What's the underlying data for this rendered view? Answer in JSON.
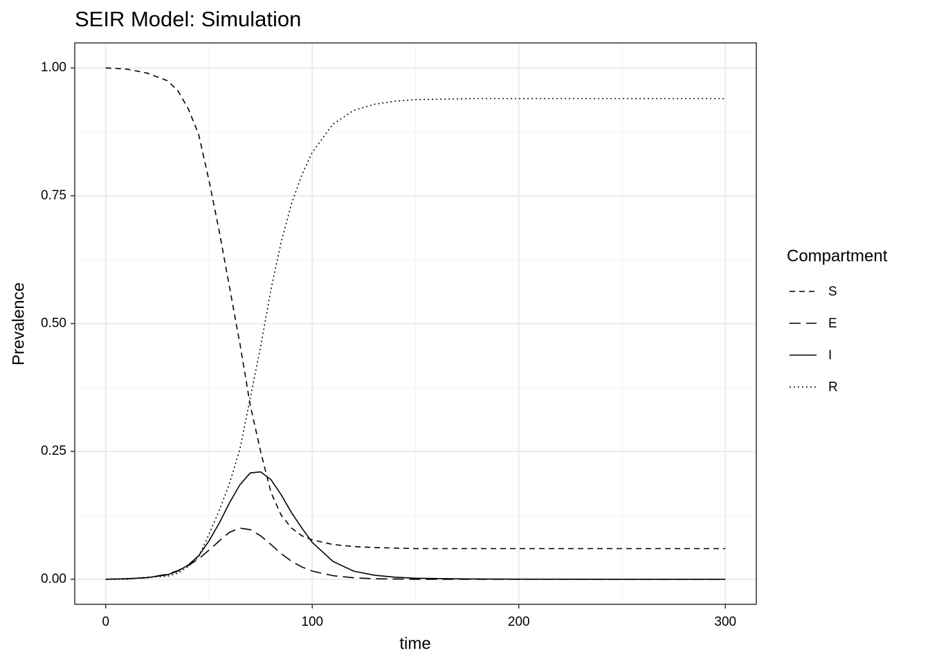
{
  "chart_data": {
    "type": "line",
    "title": "SEIR Model: Simulation",
    "x_label": "time",
    "y_label": "Prevalence",
    "legend_title": "Compartment",
    "legend": "right",
    "grid": true,
    "x": [
      0,
      10,
      20,
      30,
      35,
      40,
      45,
      50,
      55,
      60,
      65,
      70,
      75,
      80,
      85,
      90,
      95,
      100,
      110,
      120,
      130,
      140,
      150,
      175,
      200,
      250,
      300
    ],
    "series": [
      {
        "name": "S",
        "color": "#000000",
        "linetype": "dashed",
        "values": [
          1.0,
          0.998,
          0.99,
          0.975,
          0.955,
          0.92,
          0.87,
          0.78,
          0.68,
          0.57,
          0.46,
          0.34,
          0.25,
          0.17,
          0.125,
          0.1,
          0.085,
          0.077,
          0.068,
          0.064,
          0.062,
          0.061,
          0.06,
          0.06,
          0.06,
          0.06,
          0.06
        ]
      },
      {
        "name": "E",
        "color": "#000000",
        "linetype": "longdash",
        "values": [
          0,
          0.001,
          0.003,
          0.01,
          0.017,
          0.027,
          0.04,
          0.057,
          0.075,
          0.092,
          0.1,
          0.097,
          0.085,
          0.068,
          0.05,
          0.035,
          0.024,
          0.016,
          0.007,
          0.003,
          0.001,
          0.0005,
          0,
          0,
          0,
          0,
          0
        ]
      },
      {
        "name": "I",
        "color": "#000000",
        "linetype": "solid",
        "values": [
          0,
          0.001,
          0.003,
          0.009,
          0.016,
          0.028,
          0.046,
          0.075,
          0.11,
          0.15,
          0.185,
          0.208,
          0.21,
          0.195,
          0.165,
          0.13,
          0.1,
          0.072,
          0.035,
          0.016,
          0.008,
          0.004,
          0.002,
          0.0007,
          0.0002,
          0,
          0
        ]
      },
      {
        "name": "R",
        "color": "#000000",
        "linetype": "dotted",
        "values": [
          0,
          0,
          0.004,
          0.006,
          0.012,
          0.025,
          0.044,
          0.088,
          0.135,
          0.188,
          0.255,
          0.355,
          0.455,
          0.567,
          0.66,
          0.735,
          0.791,
          0.835,
          0.89,
          0.917,
          0.929,
          0.935,
          0.938,
          0.94,
          0.94,
          0.94,
          0.94
        ]
      }
    ],
    "xlim": [
      -15,
      315
    ],
    "ylim": [
      -0.049,
      1.049
    ],
    "xticks": [
      0,
      100,
      200,
      300
    ],
    "yticks": [
      {
        "value": 0,
        "label": "0.00"
      },
      {
        "value": 0.25,
        "label": "0.25"
      },
      {
        "value": 0.5,
        "label": "0.50"
      },
      {
        "value": 0.75,
        "label": "0.75"
      },
      {
        "value": 1,
        "label": "1.00"
      }
    ],
    "x_minor_ticks": [
      50,
      150,
      250
    ],
    "y_minor_ticks": [
      0.125,
      0.375,
      0.625,
      0.875
    ]
  }
}
